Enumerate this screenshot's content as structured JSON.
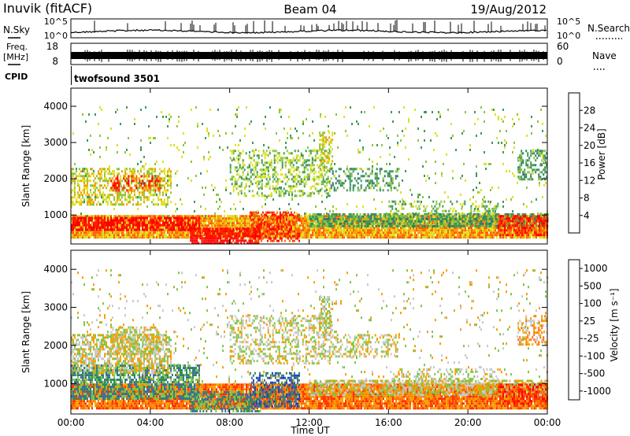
{
  "header": {
    "station": "Inuvik (fitACF)",
    "beam": "Beam 04",
    "date": "19/Aug/2012"
  },
  "nsky_panel": {
    "left_label": "N.Sky",
    "ticks_left": [
      "10^5",
      "10^0"
    ],
    "right_label": "N.Search",
    "ticks_right": [
      "10^5",
      "10^0"
    ]
  },
  "freq_panel": {
    "left_label_line1": "Freq.",
    "left_label_line2": "[MHz]",
    "ticks_left": [
      "18",
      "8"
    ],
    "right_label": "Nave",
    "ticks_right": [
      "60",
      "0"
    ]
  },
  "cpid": {
    "label": "CPID",
    "value": "twofsound 3501"
  },
  "chart_data": [
    {
      "type": "heatmap",
      "name": "power-panel",
      "ylabel": "Slant Range [km]",
      "ylim": [
        200,
        4500
      ],
      "y_ticks": [
        "1000",
        "2000",
        "3000",
        "4000"
      ],
      "x_range_hours": [
        0,
        24
      ],
      "colorbar": {
        "label": "Power [dB]",
        "range": [
          0,
          32
        ],
        "tick_labels": [
          "28",
          "24",
          "20",
          "16",
          "12",
          "8",
          "4"
        ],
        "colors": [
          "#0022ff",
          "#1f5aa8",
          "#2e7d6a",
          "#3f9a58",
          "#8cc63f",
          "#e0e020",
          "#f5a000",
          "#ff6000",
          "#ff2000",
          "#ff0000"
        ]
      },
      "bands": [
        {
          "start": 0.0,
          "end": 24.0,
          "low": 350,
          "high": 1000,
          "level": 6,
          "density": 0.95
        },
        {
          "start": 0.0,
          "end": 6.5,
          "low": 600,
          "high": 950,
          "level": 9,
          "density": 0.7
        },
        {
          "start": 6.0,
          "end": 9.5,
          "low": 250,
          "high": 650,
          "level": 9,
          "density": 0.8
        },
        {
          "start": 9.0,
          "end": 11.5,
          "low": 300,
          "high": 1100,
          "level": 8,
          "density": 0.6
        },
        {
          "start": 12.0,
          "end": 24.0,
          "low": 700,
          "high": 1050,
          "level": 3,
          "density": 0.7
        },
        {
          "start": 0.0,
          "end": 5.0,
          "low": 1300,
          "high": 2300,
          "level": 5,
          "density": 0.5
        },
        {
          "start": 2.0,
          "end": 4.5,
          "low": 1700,
          "high": 2100,
          "level": 8,
          "density": 0.45
        },
        {
          "start": 8.0,
          "end": 13.0,
          "low": 1500,
          "high": 2800,
          "level": 4,
          "density": 0.4
        },
        {
          "start": 12.5,
          "end": 13.2,
          "low": 2200,
          "high": 3300,
          "level": 5,
          "density": 0.45
        },
        {
          "start": 13.0,
          "end": 16.5,
          "low": 1700,
          "high": 2300,
          "level": 3,
          "density": 0.4
        },
        {
          "start": 16.0,
          "end": 21.5,
          "low": 1000,
          "high": 1400,
          "level": 4,
          "density": 0.3
        },
        {
          "start": 22.5,
          "end": 24.0,
          "low": 2000,
          "high": 2800,
          "level": 3,
          "density": 0.45
        },
        {
          "start": 21.5,
          "end": 24.0,
          "low": 450,
          "high": 1000,
          "level": 8,
          "density": 0.7
        },
        {
          "start": 0.0,
          "end": 24.0,
          "low": 1000,
          "high": 4000,
          "level": 4,
          "density": 0.04
        }
      ]
    },
    {
      "type": "heatmap",
      "name": "velocity-panel",
      "ylabel": "Slant Range [km]",
      "ylim": [
        200,
        4500
      ],
      "y_ticks": [
        "1000",
        "2000",
        "3000",
        "4000"
      ],
      "x_range_hours": [
        0,
        24
      ],
      "x_ticks": [
        "00:00",
        "04:00",
        "08:00",
        "12:00",
        "16:00",
        "20:00",
        "00:00"
      ],
      "xlabel": "Time UT",
      "colorbar": {
        "label": "Velocity [m s⁻¹]",
        "tick_labels": [
          "1000",
          "500",
          "100",
          "25",
          "-25",
          "-100",
          "-500",
          "-1000"
        ],
        "colors": [
          "#1f3fbf",
          "#3a6e9e",
          "#2f8a5a",
          "#7cc64a",
          "#c8c8c8",
          "#f5a000",
          "#ff7000",
          "#ff3000",
          "#ff0000"
        ]
      },
      "bands": [
        {
          "start": 0.0,
          "end": 24.0,
          "low": 350,
          "high": 1000,
          "level": 6,
          "density": 0.95
        },
        {
          "start": 0.0,
          "end": 6.5,
          "low": 600,
          "high": 1500,
          "level": 2,
          "density": 0.7
        },
        {
          "start": 6.0,
          "end": 9.5,
          "low": 250,
          "high": 800,
          "level": 2,
          "density": 0.6
        },
        {
          "start": 9.0,
          "end": 11.5,
          "low": 400,
          "high": 1300,
          "level": 1,
          "density": 0.5
        },
        {
          "start": 12.0,
          "end": 24.0,
          "low": 700,
          "high": 1100,
          "level": 4,
          "density": 0.6
        },
        {
          "start": 0.0,
          "end": 5.0,
          "low": 1300,
          "high": 2300,
          "level": 4,
          "density": 0.6
        },
        {
          "start": 2.0,
          "end": 4.5,
          "low": 1800,
          "high": 2500,
          "level": 4,
          "density": 0.5
        },
        {
          "start": 8.0,
          "end": 13.0,
          "low": 1500,
          "high": 2800,
          "level": 4,
          "density": 0.4
        },
        {
          "start": 12.5,
          "end": 13.2,
          "low": 2200,
          "high": 3300,
          "level": 4,
          "density": 0.45
        },
        {
          "start": 13.0,
          "end": 16.5,
          "low": 1700,
          "high": 2300,
          "level": 4,
          "density": 0.35
        },
        {
          "start": 16.0,
          "end": 21.5,
          "low": 1000,
          "high": 1400,
          "level": 4,
          "density": 0.3
        },
        {
          "start": 22.5,
          "end": 24.0,
          "low": 2000,
          "high": 2800,
          "level": 5,
          "density": 0.45
        },
        {
          "start": 21.5,
          "end": 24.0,
          "low": 450,
          "high": 1000,
          "level": 7,
          "density": 0.6
        },
        {
          "start": 0.0,
          "end": 24.0,
          "low": 1000,
          "high": 4000,
          "level": 4,
          "density": 0.04
        }
      ]
    }
  ]
}
